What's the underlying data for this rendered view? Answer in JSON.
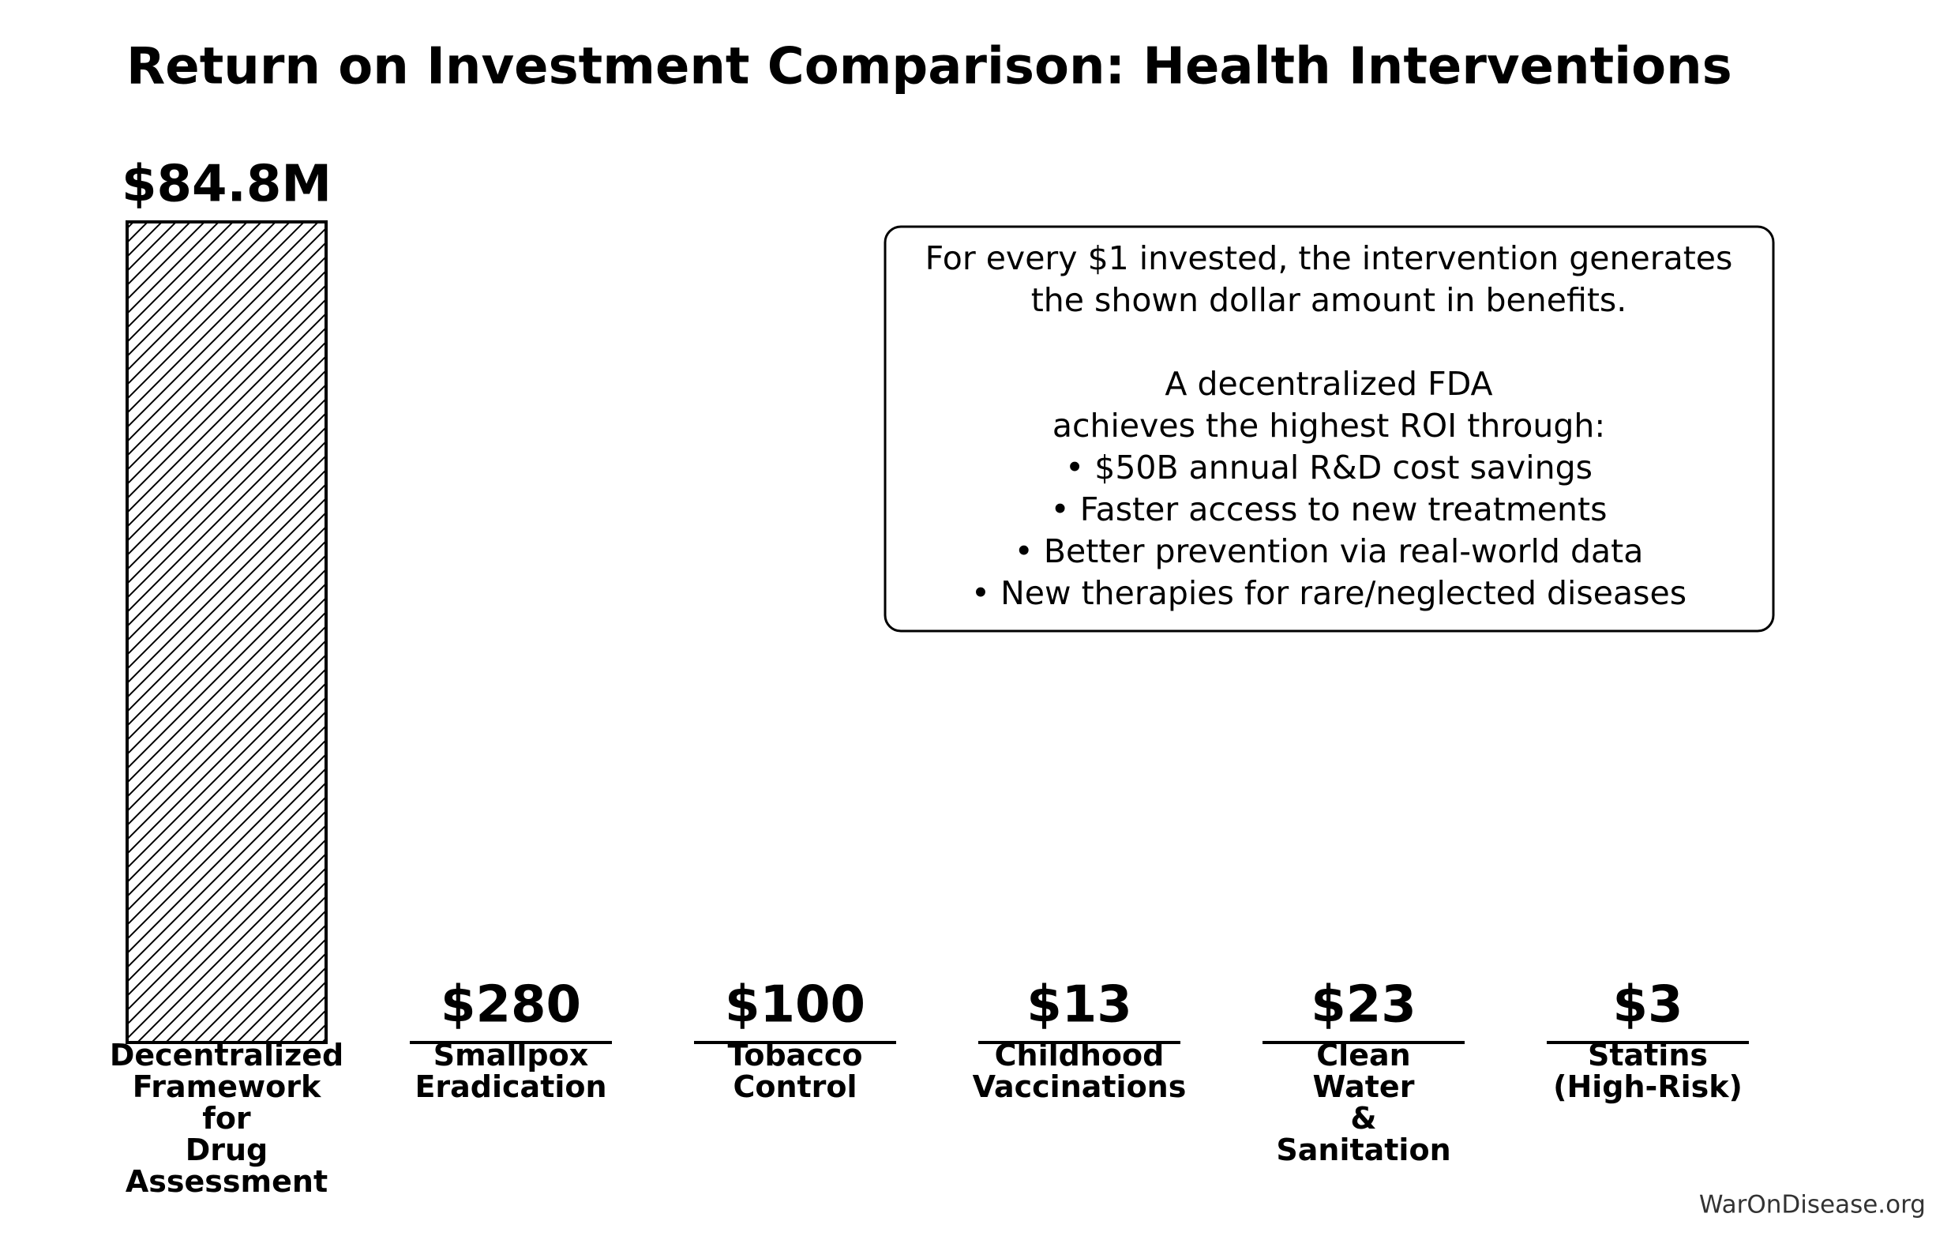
{
  "chart_data": {
    "type": "bar",
    "title": "Return on Investment Comparison: Health Interventions",
    "categories": [
      "Decentralized\nFramework\nfor\nDrug\nAssessment",
      "Smallpox\nEradication",
      "Tobacco\nControl",
      "Childhood\nVaccinations",
      "Clean\nWater\n&\nSanitation",
      "Statins\n(High-Risk)"
    ],
    "values": [
      84800000,
      280,
      100,
      13,
      23,
      3
    ],
    "value_labels": [
      "$84.8M",
      "$280",
      "$100",
      "$13",
      "$23",
      "$3"
    ],
    "color": "#ffffff",
    "edgecolor": "#000000",
    "hatch": "///",
    "ylim": [
      0,
      89040000
    ],
    "annotation": "For every $1 invested, the intervention generates\nthe shown dollar amount in benefits.\n\nA decentralized FDA\nachieves the highest ROI through:\n• $50B annual R&D cost savings\n• Faster access to new treatments\n• Better prevention via real-world data\n• New therapies for rare/neglected diseases",
    "watermark": "WarOnDisease.org"
  }
}
